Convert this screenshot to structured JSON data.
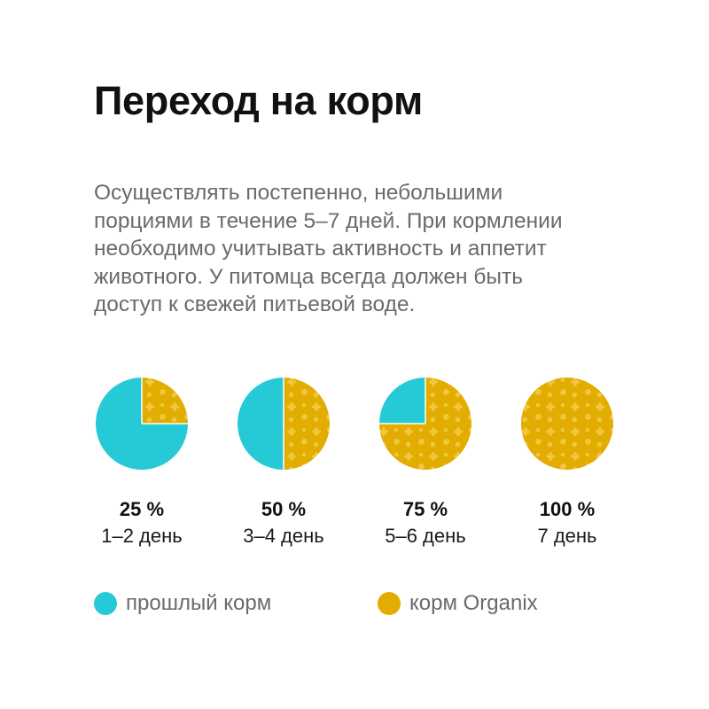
{
  "header": {
    "title": "Переход на корм"
  },
  "intro": {
    "lines": [
      "Осуществлять постепенно, небольшими",
      "порциями в течение 5–7 дней. При кормлении",
      "необходимо учитывать активность и аппетит",
      "животного. У питомца всегда должен быть",
      "доступ к свежей питьевой воде."
    ]
  },
  "chart_data": {
    "type": "pie",
    "categories": [
      "1–2 день",
      "3–4 день",
      "5–6 день",
      "7 день"
    ],
    "percent_labels": [
      "25 %",
      "50 %",
      "75 %",
      "100 %"
    ],
    "series": [
      {
        "name": "прошлый корм",
        "values": [
          75,
          50,
          25,
          0
        ]
      },
      {
        "name": "корм Organix",
        "values": [
          25,
          50,
          75,
          100
        ]
      }
    ]
  },
  "legend": {
    "items": [
      {
        "label": "прошлый корм",
        "color": "#26c9d6"
      },
      {
        "label": "корм Organix",
        "color": "#e3ac00"
      }
    ]
  },
  "colors": {
    "old_food": "#26c9d6",
    "organix": "#e3ac00",
    "organix_pattern": "#f0c840"
  }
}
